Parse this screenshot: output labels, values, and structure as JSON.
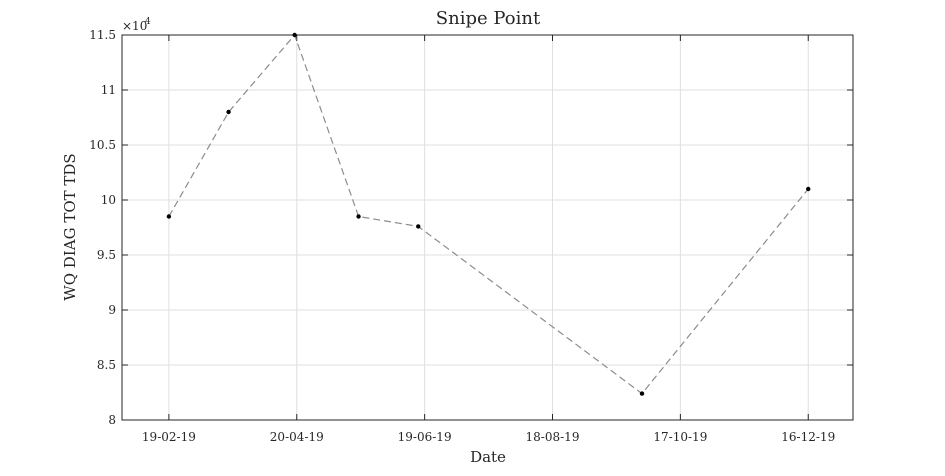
{
  "chart_data": {
    "type": "line",
    "title": "Snipe Point",
    "xlabel": "Date",
    "ylabel": "WQ DIAG TOT TDS",
    "y_exponent_label": "×10",
    "y_exponent_power": "4",
    "x": [
      "2019-02-19",
      "2019-03-19",
      "2019-04-19",
      "2019-05-19",
      "2019-06-16",
      "2019-09-29",
      "2019-12-16"
    ],
    "series": [
      {
        "values": [
          98500,
          108000,
          115000,
          98500,
          97600,
          82400,
          101000
        ]
      }
    ],
    "x_tick_dates": [
      "2019-02-19",
      "2019-04-20",
      "2019-06-19",
      "2019-08-18",
      "2019-10-17",
      "2019-12-16"
    ],
    "x_tick_labels": [
      "19-02-19",
      "20-04-19",
      "19-06-19",
      "18-08-19",
      "17-10-19",
      "16-12-19"
    ],
    "xlim": [
      "2019-01-28",
      "2020-01-06"
    ],
    "ylim": [
      80000,
      115000
    ],
    "y_ticks": [
      80000,
      85000,
      90000,
      95000,
      100000,
      105000,
      110000,
      115000
    ],
    "y_tick_labels": [
      "8",
      "8.5",
      "9",
      "9.5",
      "10",
      "10.5",
      "11",
      "11.5"
    ],
    "grid": true,
    "line_style": "dashed",
    "line_color": "#8c8c8c",
    "marker_color": "#000000"
  }
}
